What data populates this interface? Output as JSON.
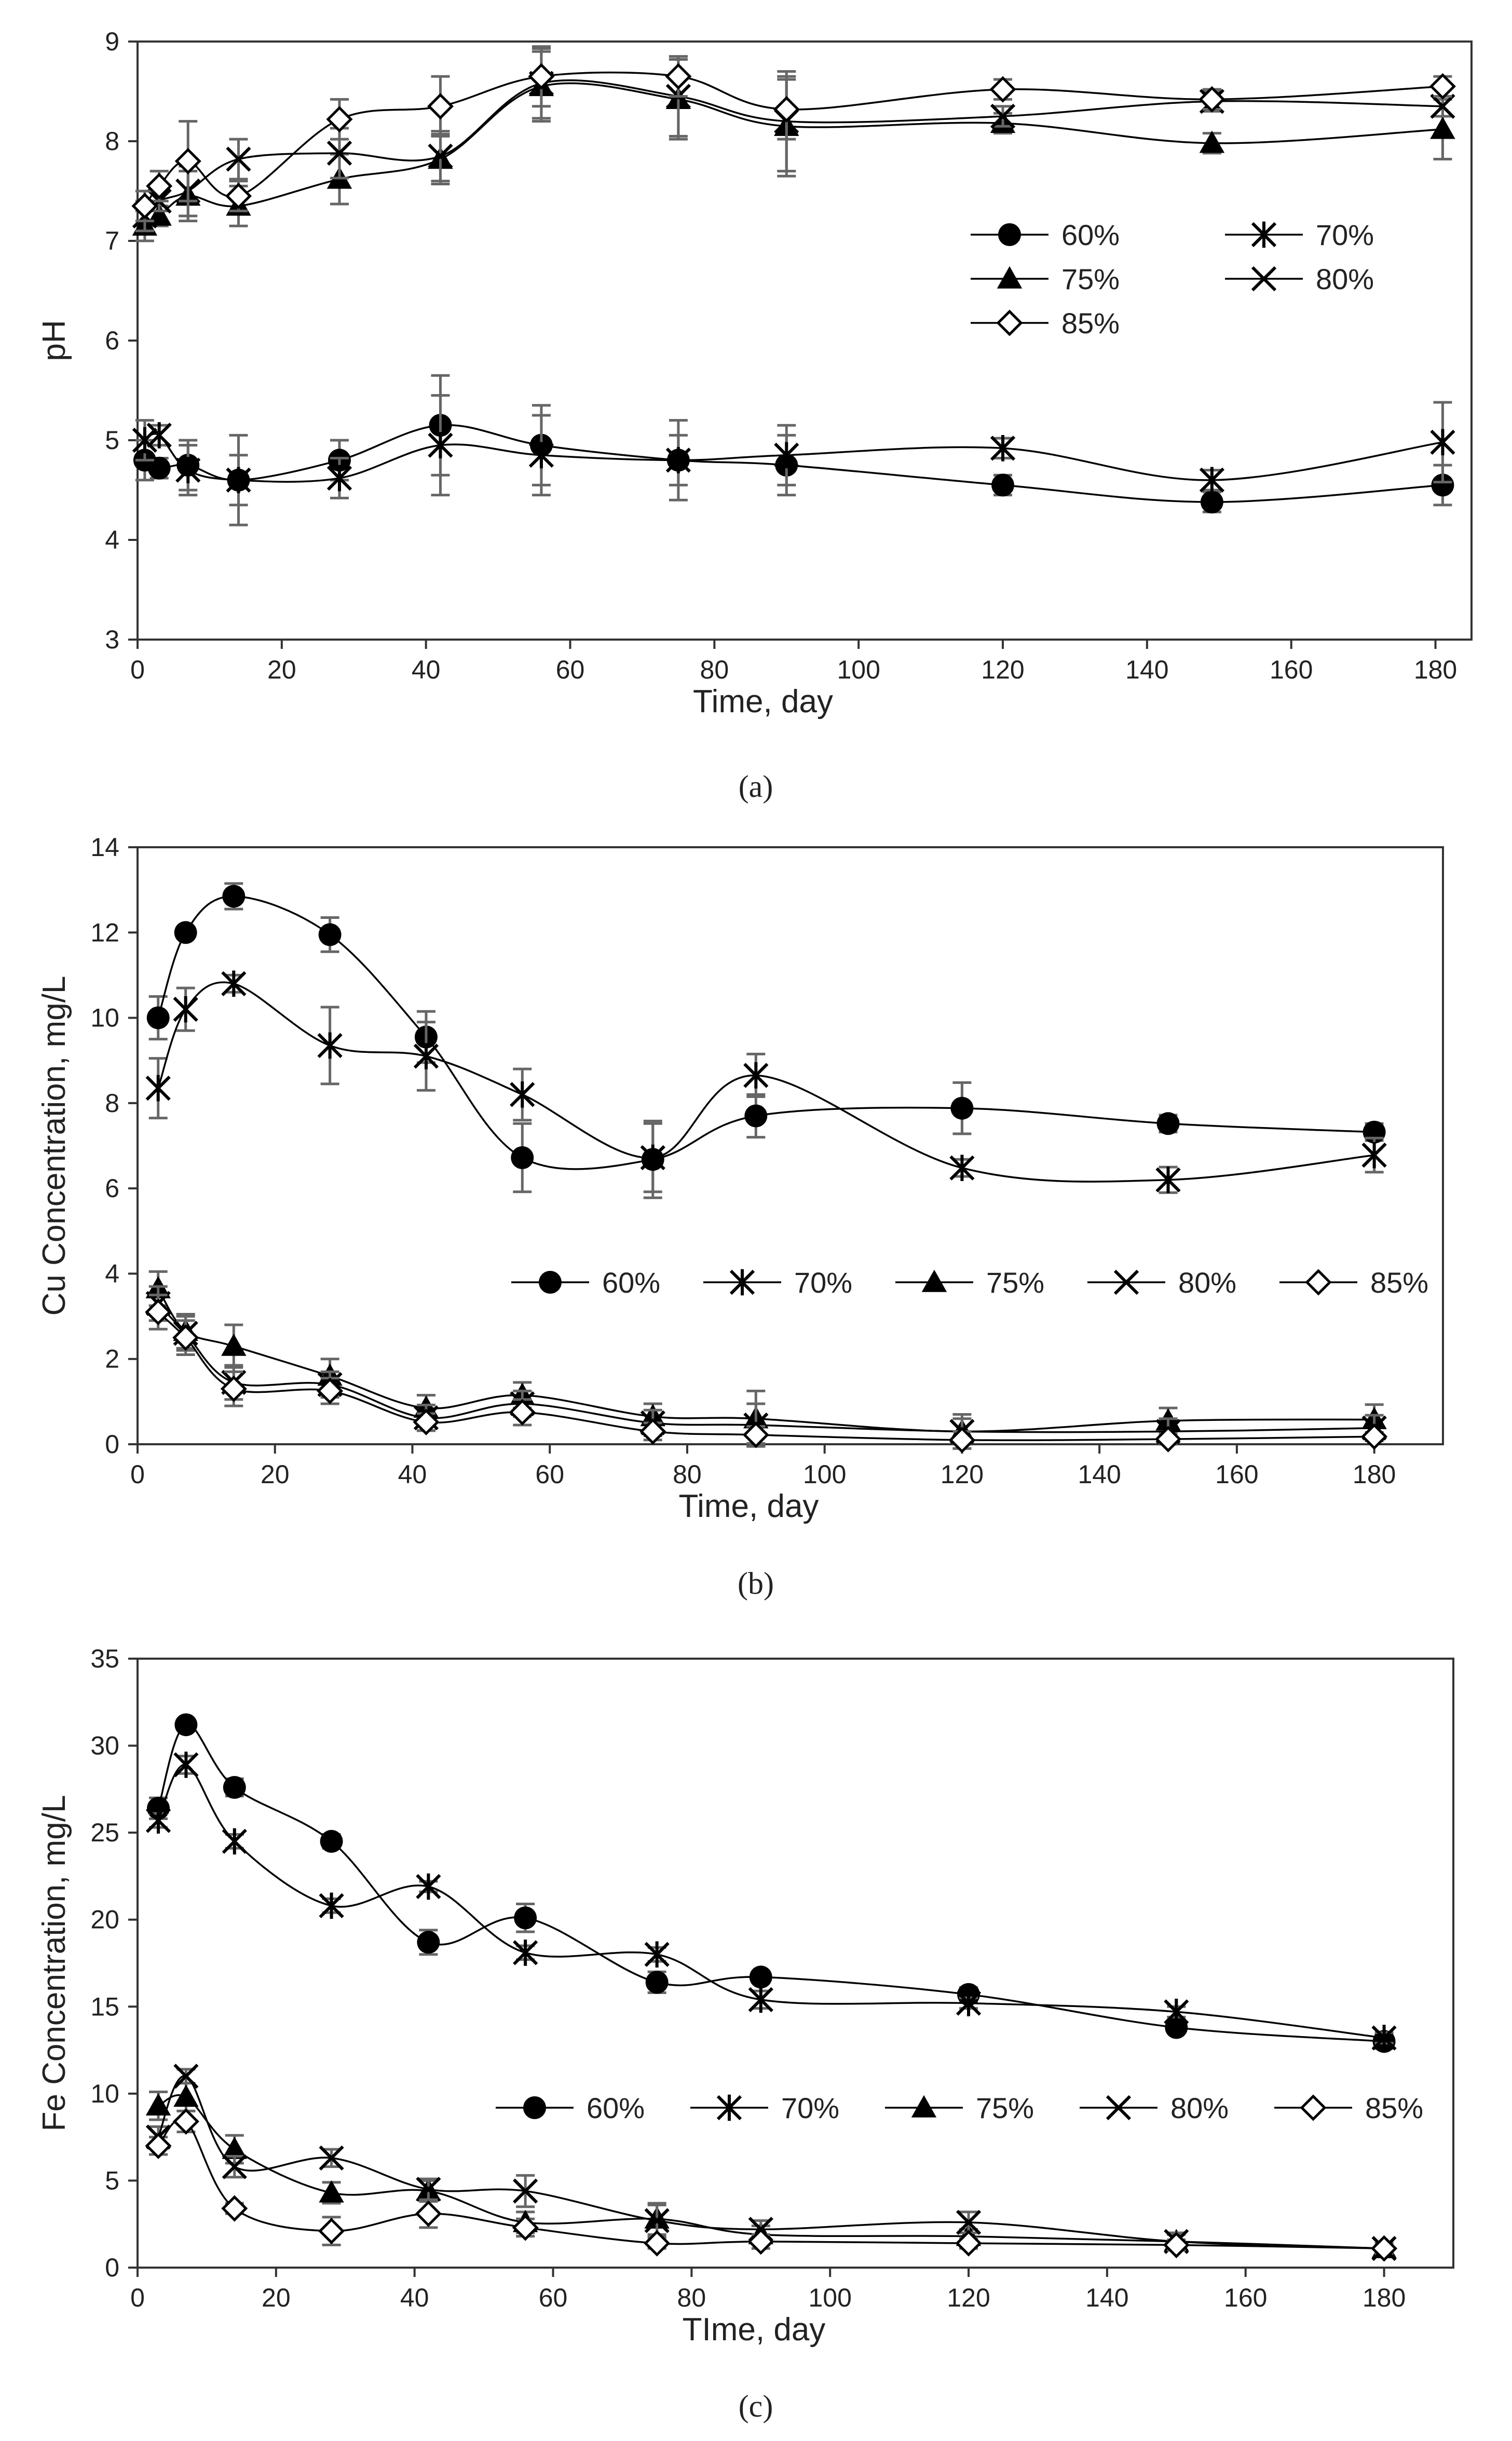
{
  "chart_data": [
    {
      "type": "line",
      "panel_label": "(a)",
      "xlabel": "Time, day",
      "ylabel": "pH",
      "xlim": [
        0,
        185
      ],
      "ylim": [
        3,
        9
      ],
      "xticks": [
        0,
        20,
        40,
        60,
        80,
        100,
        120,
        140,
        160,
        180
      ],
      "yticks": [
        3,
        4,
        5,
        6,
        7,
        8,
        9
      ],
      "grid": false,
      "legend": {
        "placement": "center-right",
        "columns": 2
      },
      "series": [
        {
          "name": "60%",
          "marker": "circle",
          "x": [
            1,
            3,
            7,
            14,
            28,
            42,
            56,
            75,
            90,
            120,
            149,
            181
          ],
          "y": [
            4.8,
            4.72,
            4.75,
            4.6,
            4.8,
            5.15,
            4.95,
            4.8,
            4.75,
            4.55,
            4.38,
            4.55
          ],
          "err": [
            0.2,
            0.1,
            0.25,
            0.45,
            0.2,
            0.5,
            0.4,
            0.4,
            0.3,
            0.1,
            0.1,
            0.2
          ]
        },
        {
          "name": "70%",
          "marker": "asterisk",
          "x": [
            1,
            3,
            7,
            14,
            28,
            42,
            56,
            75,
            90,
            120,
            149,
            181
          ],
          "y": [
            5.0,
            5.05,
            4.7,
            4.6,
            4.62,
            4.95,
            4.85,
            4.8,
            4.85,
            4.92,
            4.6,
            4.98
          ],
          "err": [
            0.2,
            0.1,
            0.25,
            0.25,
            0.2,
            0.5,
            0.4,
            0.25,
            0.3,
            0.1,
            0.1,
            0.4
          ]
        },
        {
          "name": "75%",
          "marker": "triangle",
          "x": [
            1,
            3,
            7,
            14,
            28,
            42,
            56,
            75,
            90,
            120,
            149,
            181
          ],
          "y": [
            7.15,
            7.25,
            7.45,
            7.35,
            7.62,
            7.82,
            8.55,
            8.42,
            8.15,
            8.18,
            7.98,
            8.12
          ],
          "err": [
            0.15,
            0.1,
            0.25,
            0.2,
            0.25,
            0.25,
            0.35,
            0.4,
            0.5,
            0.1,
            0.1,
            0.3
          ]
        },
        {
          "name": "80%",
          "marker": "x",
          "x": [
            1,
            3,
            7,
            14,
            28,
            42,
            56,
            75,
            90,
            120,
            149,
            181
          ],
          "y": [
            7.25,
            7.4,
            7.5,
            7.82,
            7.88,
            7.85,
            8.58,
            8.45,
            8.2,
            8.25,
            8.4,
            8.35
          ],
          "err": [
            0.15,
            0.1,
            0.25,
            0.2,
            0.25,
            0.25,
            0.35,
            0.4,
            0.5,
            0.1,
            0.1,
            0.1
          ]
        },
        {
          "name": "85%",
          "marker": "diamond-open",
          "x": [
            1,
            3,
            7,
            14,
            28,
            42,
            56,
            75,
            90,
            120,
            149,
            181
          ],
          "y": [
            7.35,
            7.55,
            7.8,
            7.45,
            8.22,
            8.35,
            8.65,
            8.65,
            8.32,
            8.52,
            8.42,
            8.55
          ],
          "err": [
            0.15,
            0.15,
            0.4,
            0.15,
            0.2,
            0.3,
            0.3,
            0.2,
            0.3,
            0.1,
            0.1,
            0.1
          ]
        }
      ]
    },
    {
      "type": "line",
      "panel_label": "(b)",
      "xlabel": "Time, day",
      "ylabel": "Cu Concentration, mg/L",
      "xlim": [
        0,
        190
      ],
      "ylim": [
        0,
        14
      ],
      "xticks": [
        0,
        20,
        40,
        60,
        80,
        100,
        120,
        140,
        160,
        180
      ],
      "yticks": [
        0,
        2,
        4,
        6,
        8,
        10,
        12,
        14
      ],
      "grid": false,
      "legend": {
        "placement": "center",
        "columns": 5
      },
      "series": [
        {
          "name": "60%",
          "marker": "circle",
          "x": [
            3,
            7,
            14,
            28,
            42,
            56,
            75,
            90,
            120,
            150,
            180
          ],
          "y": [
            10.0,
            12.0,
            12.85,
            11.95,
            9.55,
            6.72,
            6.68,
            7.7,
            7.88,
            7.52,
            7.32
          ],
          "err": [
            0.5,
            0.1,
            0.3,
            0.4,
            0.6,
            0.8,
            0.9,
            0.5,
            0.6,
            0.2,
            0.2
          ]
        },
        {
          "name": "70%",
          "marker": "asterisk",
          "x": [
            3,
            7,
            14,
            28,
            42,
            56,
            75,
            90,
            120,
            150,
            180
          ],
          "y": [
            8.35,
            10.2,
            10.8,
            9.35,
            9.1,
            8.2,
            6.72,
            8.65,
            6.48,
            6.2,
            6.78
          ],
          "err": [
            0.7,
            0.5,
            0.2,
            0.9,
            0.8,
            0.6,
            0.8,
            0.5,
            0.2,
            0.3,
            0.4
          ]
        },
        {
          "name": "75%",
          "marker": "triangle",
          "x": [
            3,
            7,
            14,
            28,
            42,
            56,
            75,
            90,
            120,
            150,
            180
          ],
          "y": [
            3.65,
            2.65,
            2.3,
            1.6,
            0.85,
            1.15,
            0.65,
            0.6,
            0.3,
            0.55,
            0.58
          ],
          "err": [
            0.4,
            0.4,
            0.5,
            0.4,
            0.3,
            0.3,
            0.3,
            0.65,
            0.4,
            0.3,
            0.35
          ]
        },
        {
          "name": "80%",
          "marker": "x",
          "x": [
            3,
            7,
            14,
            28,
            42,
            56,
            75,
            90,
            120,
            150,
            180
          ],
          "y": [
            3.3,
            2.6,
            1.45,
            1.4,
            0.62,
            0.95,
            0.5,
            0.45,
            0.3,
            0.3,
            0.38
          ],
          "err": [
            0.4,
            0.4,
            0.4,
            0.3,
            0.3,
            0.3,
            0.3,
            0.5,
            0.3,
            0.3,
            0.3
          ]
        },
        {
          "name": "85%",
          "marker": "diamond-open",
          "x": [
            3,
            7,
            14,
            28,
            42,
            56,
            75,
            90,
            120,
            150,
            180
          ],
          "y": [
            3.1,
            2.5,
            1.3,
            1.25,
            0.52,
            0.75,
            0.3,
            0.22,
            0.1,
            0.12,
            0.18
          ],
          "err": [
            0.4,
            0.4,
            0.4,
            0.3,
            0.2,
            0.3,
            0.2,
            0.2,
            0.2,
            0.1,
            0.1
          ]
        }
      ]
    },
    {
      "type": "line",
      "panel_label": "(c)",
      "xlabel": "TIme, day",
      "ylabel": "Fe Concentration, mg/L",
      "xlim": [
        0,
        190
      ],
      "ylim": [
        0,
        35
      ],
      "xticks": [
        0,
        20,
        40,
        60,
        80,
        100,
        120,
        140,
        160,
        180
      ],
      "yticks": [
        0,
        5,
        10,
        15,
        20,
        25,
        30,
        35
      ],
      "grid": false,
      "legend": {
        "placement": "center",
        "columns": 5
      },
      "series": [
        {
          "name": "60%",
          "marker": "circle",
          "x": [
            3,
            7,
            14,
            28,
            42,
            56,
            75,
            90,
            120,
            150,
            180
          ],
          "y": [
            26.4,
            31.2,
            27.6,
            24.5,
            18.7,
            20.1,
            16.4,
            16.7,
            15.7,
            13.8,
            13.0
          ],
          "err": [
            0.6,
            0.3,
            0.5,
            0.4,
            0.7,
            0.8,
            0.6,
            0.3,
            0.4,
            0.3,
            0.4
          ]
        },
        {
          "name": "70%",
          "marker": "asterisk",
          "x": [
            3,
            7,
            14,
            28,
            42,
            56,
            75,
            90,
            120,
            150,
            180
          ],
          "y": [
            25.7,
            28.9,
            24.5,
            20.8,
            21.9,
            18.1,
            18.0,
            15.4,
            15.2,
            14.7,
            13.2
          ],
          "err": [
            0.4,
            0.5,
            0.4,
            0.4,
            0.3,
            0.4,
            0.4,
            0.5,
            0.3,
            0.3,
            0.3
          ]
        },
        {
          "name": "75%",
          "marker": "triangle",
          "x": [
            3,
            7,
            14,
            28,
            42,
            56,
            75,
            90,
            120,
            150,
            180
          ],
          "y": [
            9.3,
            9.8,
            6.8,
            4.3,
            4.4,
            2.6,
            2.8,
            1.9,
            1.8,
            1.5,
            1.1
          ],
          "err": [
            0.8,
            0.8,
            0.8,
            0.6,
            0.6,
            0.6,
            0.9,
            0.5,
            0.4,
            0.4,
            0.3
          ]
        },
        {
          "name": "80%",
          "marker": "x",
          "x": [
            3,
            7,
            14,
            28,
            42,
            56,
            75,
            90,
            120,
            150,
            180
          ],
          "y": [
            7.5,
            11.0,
            5.8,
            6.3,
            4.5,
            4.4,
            2.7,
            2.2,
            2.6,
            1.5,
            1.1
          ],
          "err": [
            0.6,
            0.4,
            0.6,
            0.5,
            0.6,
            0.9,
            0.9,
            0.5,
            0.6,
            0.5,
            0.3
          ]
        },
        {
          "name": "85%",
          "marker": "diamond-open",
          "x": [
            3,
            7,
            14,
            28,
            42,
            56,
            75,
            90,
            120,
            150,
            180
          ],
          "y": [
            7.0,
            8.4,
            3.4,
            2.1,
            3.1,
            2.3,
            1.4,
            1.5,
            1.4,
            1.3,
            1.1
          ],
          "err": [
            0.5,
            0.6,
            0.3,
            0.8,
            0.8,
            0.5,
            0.3,
            0.4,
            0.3,
            0.3,
            0.2
          ]
        }
      ]
    }
  ]
}
